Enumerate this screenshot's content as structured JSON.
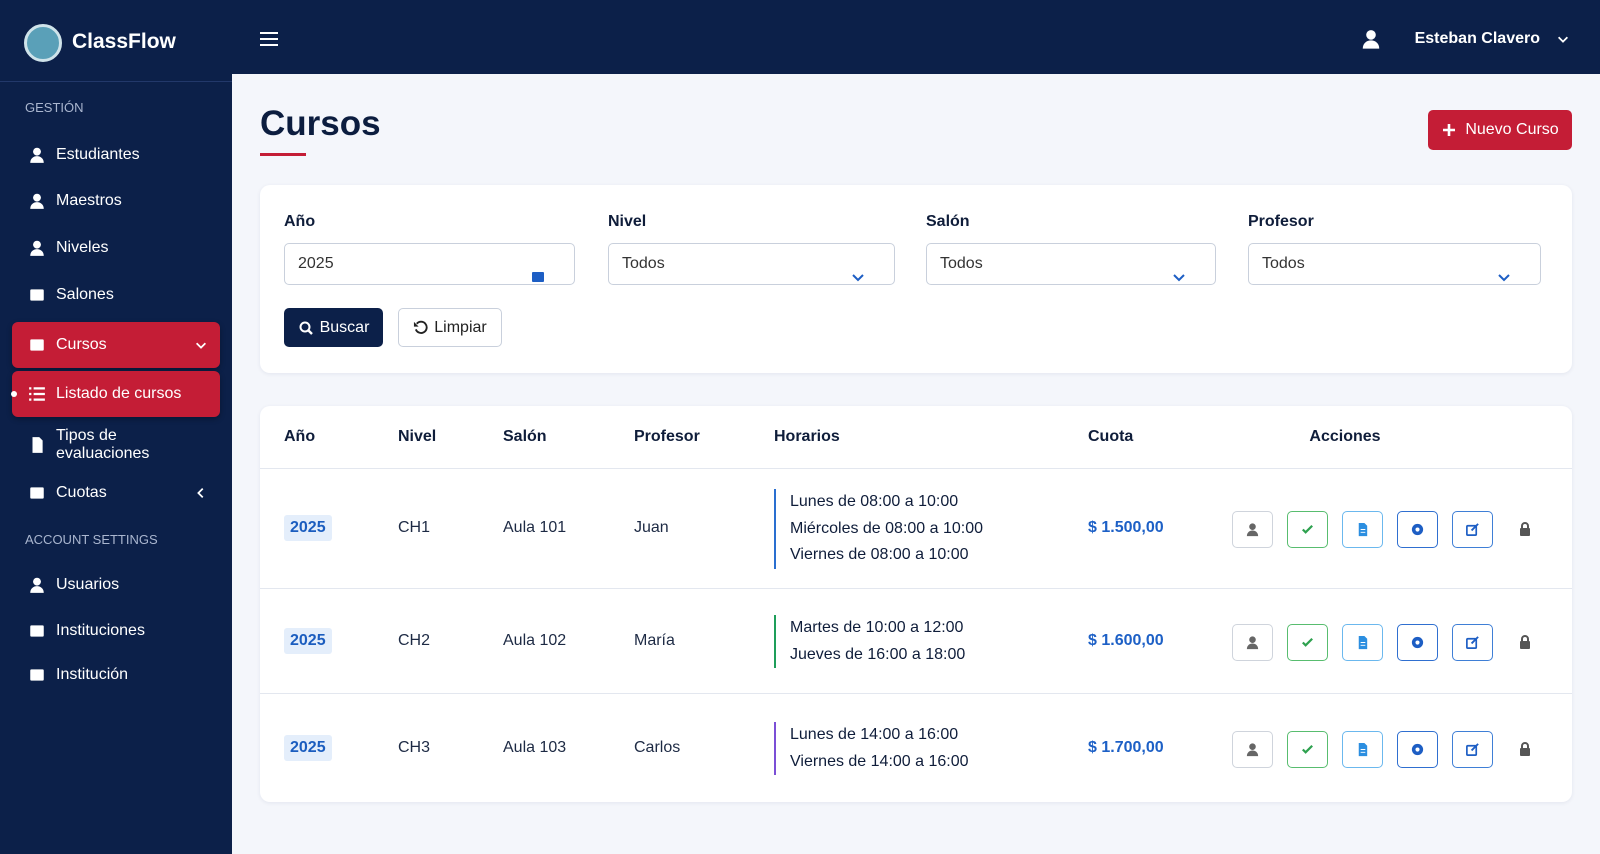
{
  "brand": "ClassFlow",
  "user": "Esteban Clavero",
  "sidebar": {
    "sections": [
      {
        "title": "GESTIÓN",
        "items": [
          "Estudiantes",
          "Maestros",
          "Niveles",
          "Salones",
          "Cursos",
          "Listado de cursos",
          "Tipos de evaluaciones",
          "Cuotas"
        ]
      },
      {
        "title": "ACCOUNT SETTINGS",
        "items": [
          "Usuarios",
          "Instituciones",
          "Institución"
        ]
      }
    ]
  },
  "page": {
    "title": "Cursos",
    "new_button": "Nuevo Curso"
  },
  "filters": {
    "fields": [
      {
        "label": "Año",
        "value": "2025"
      },
      {
        "label": "Nivel",
        "value": "Todos"
      },
      {
        "label": "Salón",
        "value": "Todos"
      },
      {
        "label": "Profesor",
        "value": "Todos"
      }
    ],
    "search": "Buscar",
    "clear": "Limpiar"
  },
  "table": {
    "headers": [
      "Año",
      "Nivel",
      "Salón",
      "Profesor",
      "Horarios",
      "Cuota",
      "Acciones"
    ],
    "rows": [
      {
        "year": "2025",
        "level": "CH1",
        "room": "Aula 101",
        "teacher": "Juan",
        "schedule": [
          "Lunes de 08:00 a 10:00",
          "Miércoles de 08:00 a 10:00",
          "Viernes de 08:00 a 10:00"
        ],
        "fee": "$ 1.500,00"
      },
      {
        "year": "2025",
        "level": "CH2",
        "room": "Aula 102",
        "teacher": "María",
        "schedule": [
          "Martes de 10:00 a 12:00",
          "Jueves de 16:00 a 18:00"
        ],
        "fee": "$ 1.600,00"
      },
      {
        "year": "2025",
        "level": "CH3",
        "room": "Aula 103",
        "teacher": "Carlos",
        "schedule": [
          "Lunes de 14:00 a 16:00",
          "Viernes de 14:00 a 16:00"
        ],
        "fee": "$ 1.700,00"
      }
    ]
  }
}
